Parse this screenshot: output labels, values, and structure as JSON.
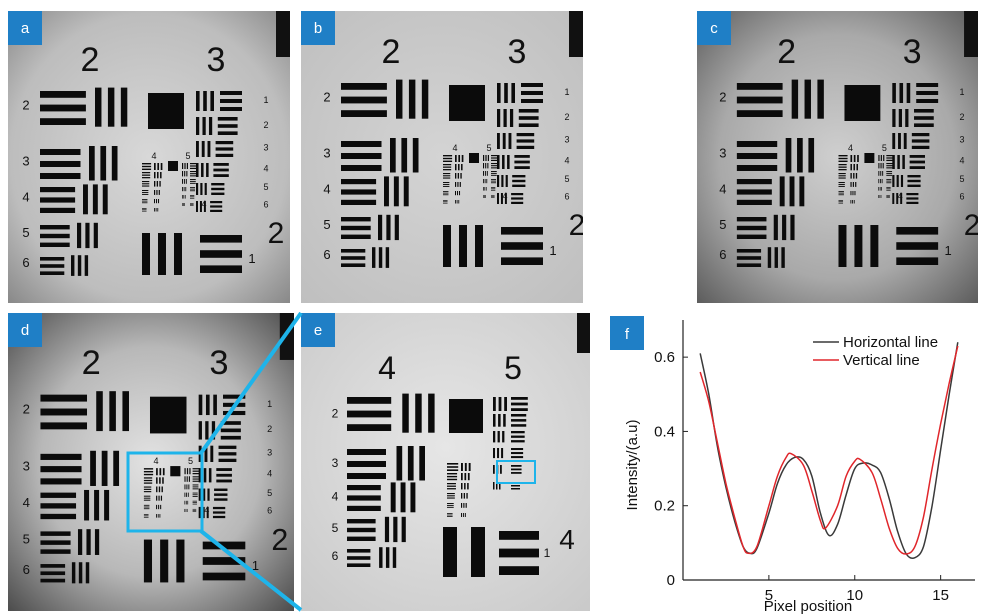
{
  "panels": {
    "a": {
      "label": "a",
      "groups": [
        "2",
        "3"
      ],
      "elements_left": [
        "2",
        "3",
        "4",
        "5",
        "6"
      ],
      "elements_right": [
        "1",
        "2",
        "3",
        "4",
        "5",
        "6"
      ],
      "inner_groups": [
        "4",
        "5"
      ],
      "inner_mark": "4",
      "bottom_element": "1",
      "side_group": "2"
    },
    "b": {
      "label": "b",
      "groups": [
        "2",
        "3"
      ],
      "elements_left": [
        "2",
        "3",
        "4",
        "5",
        "6"
      ],
      "elements_right": [
        "1",
        "2",
        "3",
        "4",
        "5",
        "6"
      ],
      "inner_groups": [
        "4",
        "5"
      ],
      "inner_mark": "4",
      "bottom_element": "1",
      "side_group": "2"
    },
    "c": {
      "label": "c",
      "groups": [
        "2",
        "3"
      ],
      "elements_left": [
        "2",
        "3",
        "4",
        "5",
        "6"
      ],
      "elements_right": [
        "1",
        "2",
        "3",
        "4",
        "5",
        "6"
      ],
      "inner_groups": [
        "4",
        "5"
      ],
      "inner_mark": "4",
      "bottom_element": "1",
      "side_group": "2"
    },
    "d": {
      "label": "d",
      "groups": [
        "2",
        "3"
      ],
      "elements_left": [
        "2",
        "3",
        "4",
        "5",
        "6"
      ],
      "elements_right": [
        "1",
        "2",
        "3",
        "4",
        "5",
        "6"
      ],
      "inner_groups": [
        "4",
        "5"
      ],
      "inner_mark": "4",
      "bottom_element": "1",
      "side_group": "2"
    },
    "e": {
      "label": "e",
      "groups": [
        "4",
        "5"
      ],
      "elements_left": [
        "2",
        "3",
        "4",
        "5",
        "6"
      ],
      "bottom_element": "1",
      "side_group": "4"
    }
  },
  "chart_label": "f",
  "colors": {
    "badge": "#1f7fc6",
    "highlight": "#1eb4ea",
    "horizontal": "#3a3a3a",
    "vertical": "#e0262b"
  },
  "chart_data": {
    "type": "line",
    "xlabel": "Pixel position",
    "ylabel": "Intensity/(a.u)",
    "xlim": [
      0,
      17
    ],
    "ylim": [
      0,
      0.7
    ],
    "xticks": [
      5,
      10,
      15
    ],
    "yticks": [
      0,
      0.2,
      0.4,
      0.6
    ],
    "xtick_labels": [
      "5",
      "10",
      "15"
    ],
    "ytick_labels": [
      "0",
      "0.2",
      "0.4",
      "0.6"
    ],
    "legend_position": "top-right",
    "series": [
      {
        "name": "Horizontal line",
        "color": "#3a3a3a",
        "points": [
          [
            1,
            0.61
          ],
          [
            1.5,
            0.5
          ],
          [
            2,
            0.36
          ],
          [
            2.5,
            0.25
          ],
          [
            3,
            0.16
          ],
          [
            3.5,
            0.09
          ],
          [
            3.9,
            0.072
          ],
          [
            4.3,
            0.085
          ],
          [
            5,
            0.18
          ],
          [
            5.5,
            0.26
          ],
          [
            6,
            0.31
          ],
          [
            6.5,
            0.33
          ],
          [
            7,
            0.325
          ],
          [
            7.5,
            0.28
          ],
          [
            8,
            0.18
          ],
          [
            8.5,
            0.12
          ],
          [
            9,
            0.15
          ],
          [
            9.5,
            0.23
          ],
          [
            10,
            0.3
          ],
          [
            10.5,
            0.315
          ],
          [
            11,
            0.31
          ],
          [
            11.5,
            0.29
          ],
          [
            12,
            0.22
          ],
          [
            12.5,
            0.13
          ],
          [
            13,
            0.07
          ],
          [
            13.5,
            0.06
          ],
          [
            14,
            0.09
          ],
          [
            14.5,
            0.2
          ],
          [
            15,
            0.35
          ],
          [
            15.5,
            0.5
          ],
          [
            16,
            0.64
          ]
        ]
      },
      {
        "name": "Vertical line",
        "color": "#e0262b",
        "points": [
          [
            1,
            0.56
          ],
          [
            1.5,
            0.48
          ],
          [
            2,
            0.37
          ],
          [
            2.5,
            0.26
          ],
          [
            3,
            0.17
          ],
          [
            3.5,
            0.09
          ],
          [
            3.8,
            0.072
          ],
          [
            4.3,
            0.09
          ],
          [
            5,
            0.2
          ],
          [
            5.5,
            0.28
          ],
          [
            6,
            0.33
          ],
          [
            6.3,
            0.34
          ],
          [
            7,
            0.31
          ],
          [
            7.5,
            0.24
          ],
          [
            8,
            0.16
          ],
          [
            8.3,
            0.14
          ],
          [
            9,
            0.2
          ],
          [
            9.5,
            0.28
          ],
          [
            10,
            0.32
          ],
          [
            10.3,
            0.325
          ],
          [
            11,
            0.29
          ],
          [
            11.5,
            0.22
          ],
          [
            12,
            0.14
          ],
          [
            12.5,
            0.085
          ],
          [
            13,
            0.07
          ],
          [
            13.5,
            0.09
          ],
          [
            14,
            0.17
          ],
          [
            14.5,
            0.3
          ],
          [
            15,
            0.42
          ],
          [
            15.5,
            0.53
          ],
          [
            16,
            0.63
          ]
        ]
      }
    ]
  }
}
